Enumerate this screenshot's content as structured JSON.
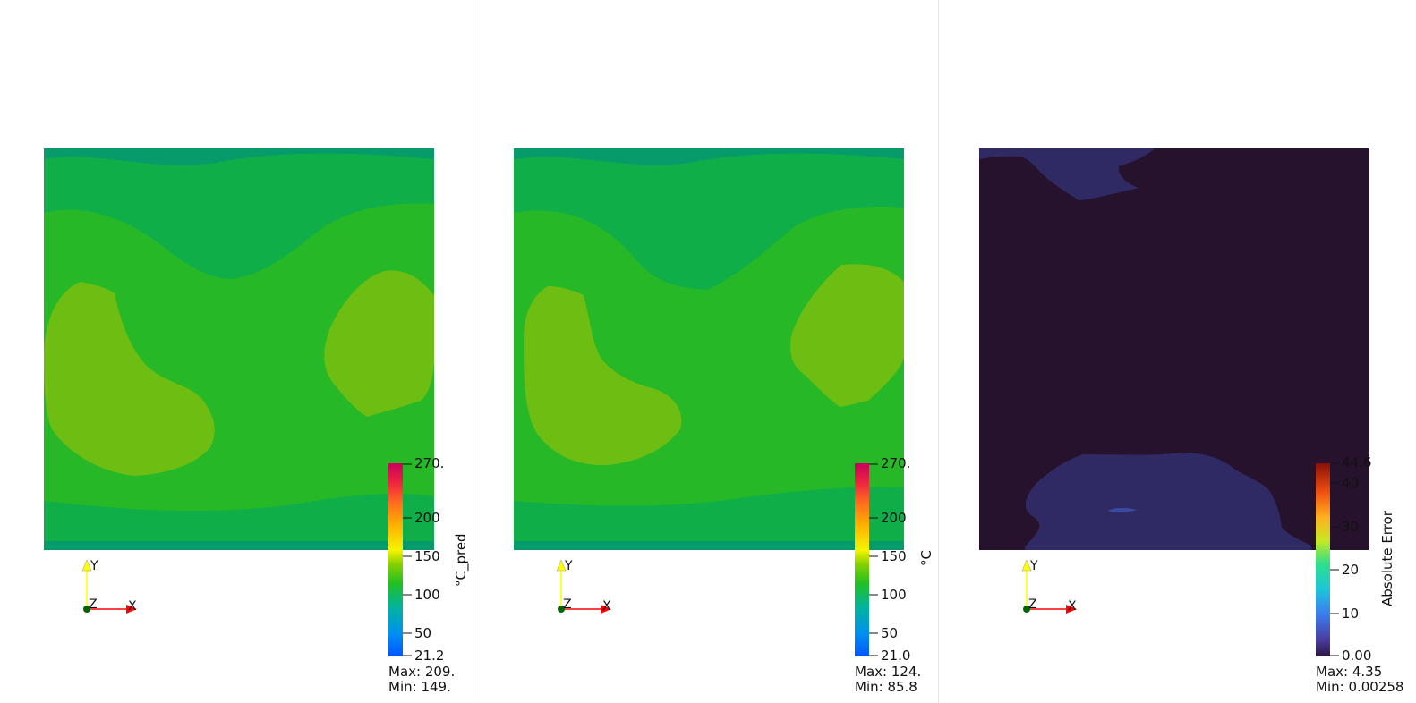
{
  "views": [
    {
      "name": "prediction",
      "colorbar": {
        "title": "°C_pred",
        "tick_labels": [
          "270.",
          "200",
          "150",
          "100",
          "50",
          "21.2"
        ],
        "range_min": 21.2,
        "range_max": 270,
        "scheme": "rainbow"
      },
      "range_text": {
        "max": "Max: 209.",
        "min": "Min: 149."
      }
    },
    {
      "name": "ground-truth",
      "colorbar": {
        "title": "°C",
        "tick_labels": [
          "270.",
          "200",
          "150",
          "100",
          "50",
          "21.0"
        ],
        "range_min": 21.0,
        "range_max": 270,
        "scheme": "rainbow"
      },
      "range_text": {
        "max": "Max: 124.",
        "min": "Min: 85.8"
      }
    },
    {
      "name": "absolute-error",
      "colorbar": {
        "title": "Absolute Error",
        "tick_labels": [
          "44.6",
          "40",
          "30",
          "20",
          "10",
          "0.00"
        ],
        "range_min": 0.0,
        "range_max": 44.6,
        "scheme": "turbo"
      },
      "range_text": {
        "max": "Max: 4.35",
        "min": "Min: 0.00258"
      }
    }
  ],
  "axes": {
    "y": "Y",
    "z": "Z",
    "x": "X"
  },
  "colors": {
    "field_dark_green": "#079b6b",
    "field_green": "#0fae48",
    "field_light_green": "#26b827",
    "field_yellow_green": "#6dbd12",
    "error_background": "#26122d",
    "error_patch": "#2f2a63",
    "error_speck": "#3a4aa0",
    "axis_y": "#ffff00",
    "axis_x": "#ff0000",
    "axis_origin": "#006400"
  }
}
